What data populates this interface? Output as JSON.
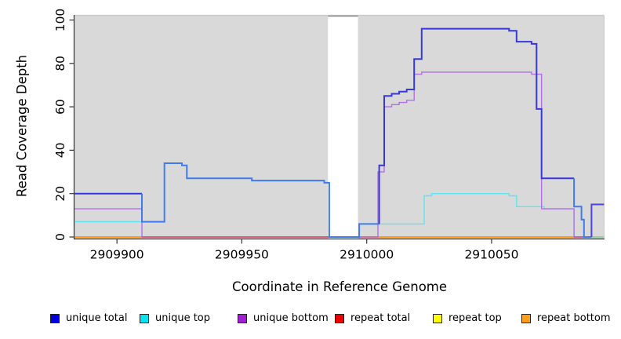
{
  "chart_data": {
    "type": "line",
    "subtype": "step-coverage-plot",
    "title": "",
    "xlabel": "Coordinate in Reference Genome",
    "ylabel": "Read Coverage Depth",
    "xlim": [
      2909883,
      2910095
    ],
    "ylim": [
      0,
      100
    ],
    "x_ticks": [
      2909900,
      2909950,
      2910000,
      2910050
    ],
    "y_ticks": [
      0,
      20,
      40,
      60,
      80,
      100
    ],
    "grid": false,
    "plot_bg_color": "#d9d9d9",
    "bg_gap_x": [
      2909984.5,
      2909996.5
    ],
    "border_light_color": "#c8c8c8",
    "border_gap_color": "#8d8d8d",
    "axis_color": "#333333",
    "legend": {
      "position": "bottom",
      "items": [
        {
          "label": "unique total",
          "swatch_fill": "#0000e0"
        },
        {
          "label": "unique top",
          "swatch_fill": "#00e5f0"
        },
        {
          "label": "unique bottom",
          "swatch_fill": "#a21fd6"
        },
        {
          "label": "repeat total",
          "swatch_fill": "#ee0000"
        },
        {
          "label": "repeat top",
          "swatch_fill": "#ffff00"
        },
        {
          "label": "repeat bottom",
          "swatch_fill": "#ffa018"
        }
      ]
    },
    "series": [
      {
        "name": "repeat top",
        "line_color": "#f5f500",
        "points": [
          [
            2909883,
            0
          ],
          [
            2910095,
            0
          ]
        ]
      },
      {
        "name": "repeat total",
        "line_color": "#dd2222",
        "points": [
          [
            2909883,
            0
          ],
          [
            2910095,
            0
          ]
        ]
      },
      {
        "name": "repeat bottom",
        "line_color": "#ff9d1e",
        "points": [
          [
            2909883,
            0
          ],
          [
            2910095,
            0
          ]
        ]
      },
      {
        "name": "unique top",
        "line_color": "#5fe5ee",
        "points": [
          [
            2909883,
            7
          ],
          [
            2909919,
            7
          ],
          [
            2909919,
            34
          ],
          [
            2909926,
            34
          ],
          [
            2909926,
            33
          ],
          [
            2909928,
            33
          ],
          [
            2909928,
            27
          ],
          [
            2909954,
            27
          ],
          [
            2909954,
            26
          ],
          [
            2909983,
            26
          ],
          [
            2909983,
            25
          ],
          [
            2909985,
            25
          ],
          [
            2909985,
            0
          ],
          [
            2909997,
            0
          ],
          [
            2909997,
            6
          ],
          [
            2910023,
            6
          ],
          [
            2910023,
            19
          ],
          [
            2910026,
            19
          ],
          [
            2910026,
            20
          ],
          [
            2910057,
            20
          ],
          [
            2910057,
            19
          ],
          [
            2910060,
            19
          ],
          [
            2910060,
            14
          ],
          [
            2910071,
            14
          ],
          [
            2910071,
            13
          ],
          [
            2910083,
            13
          ],
          [
            2910083,
            0
          ],
          [
            2910095,
            0
          ]
        ]
      },
      {
        "name": "unique bottom",
        "line_color": "#b26fe3",
        "points": [
          [
            2909883,
            13
          ],
          [
            2909910,
            13
          ],
          [
            2909910,
            0
          ],
          [
            2910004.5,
            0
          ],
          [
            2910004.5,
            30
          ],
          [
            2910007,
            30
          ],
          [
            2910007,
            60
          ],
          [
            2910010,
            60
          ],
          [
            2910010,
            61
          ],
          [
            2910013,
            61
          ],
          [
            2910013,
            62
          ],
          [
            2910016,
            62
          ],
          [
            2910016,
            63
          ],
          [
            2910019,
            63
          ],
          [
            2910019,
            75
          ],
          [
            2910022,
            75
          ],
          [
            2910022,
            76
          ],
          [
            2910066,
            76
          ],
          [
            2910066,
            75
          ],
          [
            2910070,
            75
          ],
          [
            2910070,
            13
          ],
          [
            2910083,
            13
          ],
          [
            2910083,
            0
          ],
          [
            2910090,
            0
          ],
          [
            2910090,
            15
          ],
          [
            2910095,
            15
          ]
        ]
      },
      {
        "name": "unique total",
        "line_color": "#3737de",
        "paths": [
          {
            "color": "#3737de",
            "points": [
              [
                2909883,
                20
              ],
              [
                2909910,
                20
              ]
            ]
          },
          {
            "color": "#407af0",
            "points": [
              [
                2909910,
                20
              ],
              [
                2909910,
                7
              ],
              [
                2909919,
                7
              ],
              [
                2909919,
                34
              ],
              [
                2909926,
                34
              ],
              [
                2909926,
                33
              ],
              [
                2909928,
                33
              ],
              [
                2909928,
                27
              ],
              [
                2909954,
                27
              ],
              [
                2909954,
                26
              ],
              [
                2909983,
                26
              ],
              [
                2909983,
                25
              ],
              [
                2909985,
                25
              ],
              [
                2909985,
                0
              ],
              [
                2909997,
                0
              ],
              [
                2909997,
                6
              ],
              [
                2910005,
                6
              ]
            ]
          },
          {
            "color": "#3737de",
            "points": [
              [
                2910005,
                6
              ],
              [
                2910005,
                33
              ],
              [
                2910007,
                33
              ],
              [
                2910007,
                65
              ],
              [
                2910010,
                65
              ],
              [
                2910010,
                66
              ],
              [
                2910013,
                66
              ],
              [
                2910013,
                67
              ],
              [
                2910016,
                67
              ],
              [
                2910016,
                68
              ],
              [
                2910019,
                68
              ],
              [
                2910019,
                82
              ],
              [
                2910022,
                82
              ],
              [
                2910022,
                96
              ],
              [
                2910057,
                96
              ],
              [
                2910057,
                95
              ],
              [
                2910060,
                95
              ],
              [
                2910060,
                90
              ],
              [
                2910066,
                90
              ],
              [
                2910066,
                89
              ],
              [
                2910068,
                89
              ],
              [
                2910068,
                59
              ],
              [
                2910070,
                59
              ],
              [
                2910070,
                27
              ],
              [
                2910083,
                27
              ]
            ]
          },
          {
            "color": "#407af0",
            "points": [
              [
                2910083,
                27
              ],
              [
                2910083,
                14
              ],
              [
                2910086,
                14
              ],
              [
                2910086,
                8
              ],
              [
                2910087,
                8
              ],
              [
                2910087,
                0
              ],
              [
                2910090,
                0
              ]
            ]
          },
          {
            "color": "#4d44de",
            "points": [
              [
                2910090,
                0
              ],
              [
                2910090,
                15
              ],
              [
                2910095,
                15
              ]
            ]
          }
        ]
      }
    ],
    "baseline_overlays": [
      {
        "x1": 2909910,
        "x2": 2909985,
        "color": "#d8517d"
      },
      {
        "x1": 2909997,
        "x2": 2910004.5,
        "color": "#d465a8"
      },
      {
        "x1": 2910083,
        "x2": 2910090,
        "color": "#cc5588"
      },
      {
        "x1": 2910090,
        "x2": 2910095,
        "color": "#8ed9ac"
      }
    ]
  }
}
